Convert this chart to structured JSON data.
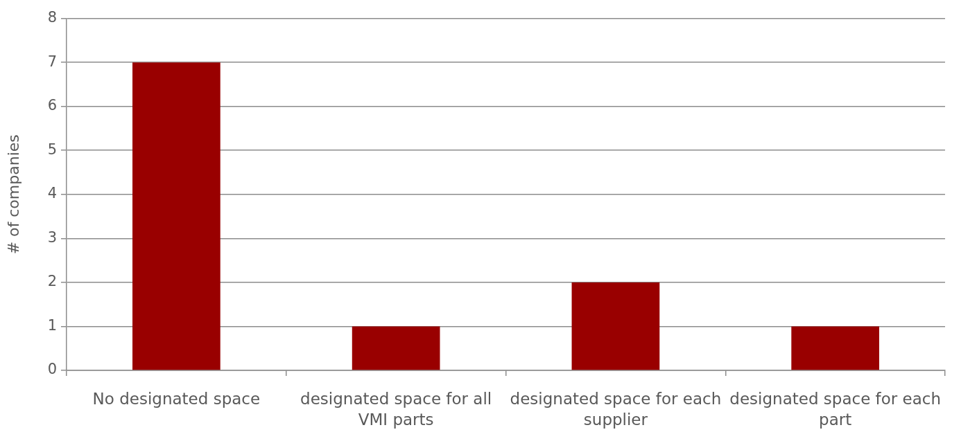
{
  "chart_data": {
    "type": "bar",
    "ylabel": "# of companies",
    "categories": [
      "No designated space",
      "designated space for all VMI parts",
      "designated space for each supplier",
      "designated space for each part"
    ],
    "values": [
      7,
      1,
      2,
      1
    ],
    "color": "#990000",
    "ylim": [
      0,
      8
    ],
    "yticks": [
      0,
      1,
      2,
      3,
      4,
      5,
      6,
      7,
      8
    ],
    "grid": "y"
  }
}
